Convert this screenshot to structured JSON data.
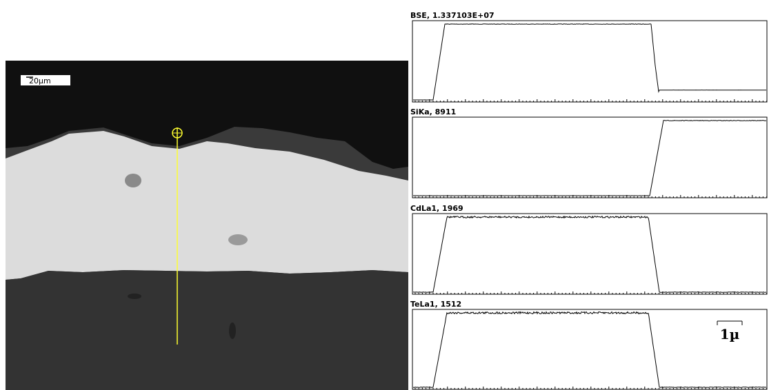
{
  "image": {
    "scale_bar": "20µm"
  },
  "profiles": [
    {
      "label": "BSE, 1.337103E+07"
    },
    {
      "label": "SiKa, 8911"
    },
    {
      "label": "CdLa1, 1969"
    },
    {
      "label": "TeLa1, 1512"
    }
  ],
  "profile_scale": "1µ"
}
